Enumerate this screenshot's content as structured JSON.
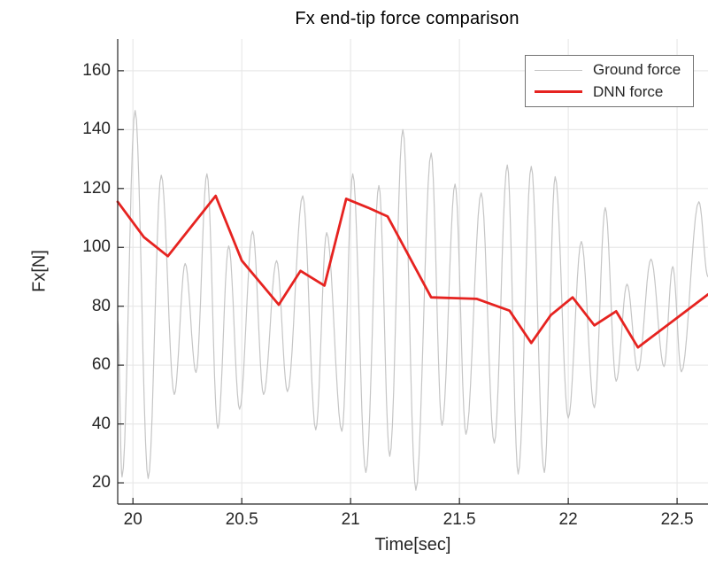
{
  "figure": {
    "background": "#ffffff"
  },
  "chart_data": {
    "type": "line",
    "title": "Fx end-tip force comparison",
    "xlabel": "Time[sec]",
    "ylabel": "Fx[N]",
    "xlim": [
      19.93,
      22.642
    ],
    "ylim": [
      12.8,
      170.8
    ],
    "xticks": [
      20,
      20.5,
      21,
      21.5,
      22,
      22.5
    ],
    "yticks": [
      20,
      40,
      60,
      80,
      100,
      120,
      140,
      160
    ],
    "grid": true,
    "legend_position": "top-right",
    "axis_color": "#262626",
    "grid_color": "#e8e8e8",
    "legend_border_color": "#737373",
    "series": [
      {
        "name": "Ground force",
        "color": "#c5c5c5",
        "line_width": 1.2,
        "interpolation": "cosine",
        "points": [
          [
            19.93,
            75
          ],
          [
            19.95,
            22
          ],
          [
            20.01,
            146.5
          ],
          [
            20.07,
            21.5
          ],
          [
            20.13,
            124.5
          ],
          [
            20.19,
            50
          ],
          [
            20.24,
            94.5
          ],
          [
            20.29,
            57.5
          ],
          [
            20.34,
            125
          ],
          [
            20.39,
            38.5
          ],
          [
            20.44,
            100.5
          ],
          [
            20.49,
            45
          ],
          [
            20.55,
            105.5
          ],
          [
            20.6,
            50
          ],
          [
            20.66,
            95.5
          ],
          [
            20.71,
            51
          ],
          [
            20.78,
            117.5
          ],
          [
            20.84,
            38
          ],
          [
            20.89,
            105
          ],
          [
            20.96,
            37.5
          ],
          [
            21.01,
            125
          ],
          [
            21.07,
            23.5
          ],
          [
            21.13,
            121
          ],
          [
            21.18,
            29
          ],
          [
            21.24,
            140
          ],
          [
            21.3,
            17.5
          ],
          [
            21.37,
            132
          ],
          [
            21.42,
            39.5
          ],
          [
            21.48,
            121.5
          ],
          [
            21.53,
            36.5
          ],
          [
            21.6,
            118.5
          ],
          [
            21.66,
            33.5
          ],
          [
            21.72,
            128
          ],
          [
            21.77,
            23
          ],
          [
            21.83,
            127.5
          ],
          [
            21.89,
            23.5
          ],
          [
            21.94,
            124
          ],
          [
            22.0,
            42
          ],
          [
            22.06,
            102
          ],
          [
            22.12,
            45.5
          ],
          [
            22.17,
            113.5
          ],
          [
            22.22,
            54.5
          ],
          [
            22.27,
            87.5
          ],
          [
            22.32,
            58
          ],
          [
            22.38,
            96
          ],
          [
            22.44,
            59.5
          ],
          [
            22.48,
            93.5
          ],
          [
            22.52,
            57.7
          ],
          [
            22.6,
            115.5
          ],
          [
            22.642,
            90
          ]
        ]
      },
      {
        "name": "DNN force",
        "color": "#e62320",
        "line_width": 2.8,
        "interpolation": "linear",
        "points": [
          [
            19.93,
            115.5
          ],
          [
            20.05,
            103.5
          ],
          [
            20.16,
            97
          ],
          [
            20.38,
            117.5
          ],
          [
            20.5,
            95.5
          ],
          [
            20.67,
            80.5
          ],
          [
            20.77,
            92
          ],
          [
            20.88,
            87
          ],
          [
            20.98,
            116.5
          ],
          [
            21.08,
            113.5
          ],
          [
            21.17,
            110.5
          ],
          [
            21.37,
            83
          ],
          [
            21.58,
            82.5
          ],
          [
            21.73,
            78.5
          ],
          [
            21.83,
            67.5
          ],
          [
            21.92,
            77
          ],
          [
            22.02,
            83
          ],
          [
            22.12,
            73.5
          ],
          [
            22.22,
            78.3
          ],
          [
            22.32,
            66
          ],
          [
            22.642,
            84
          ]
        ]
      }
    ]
  }
}
